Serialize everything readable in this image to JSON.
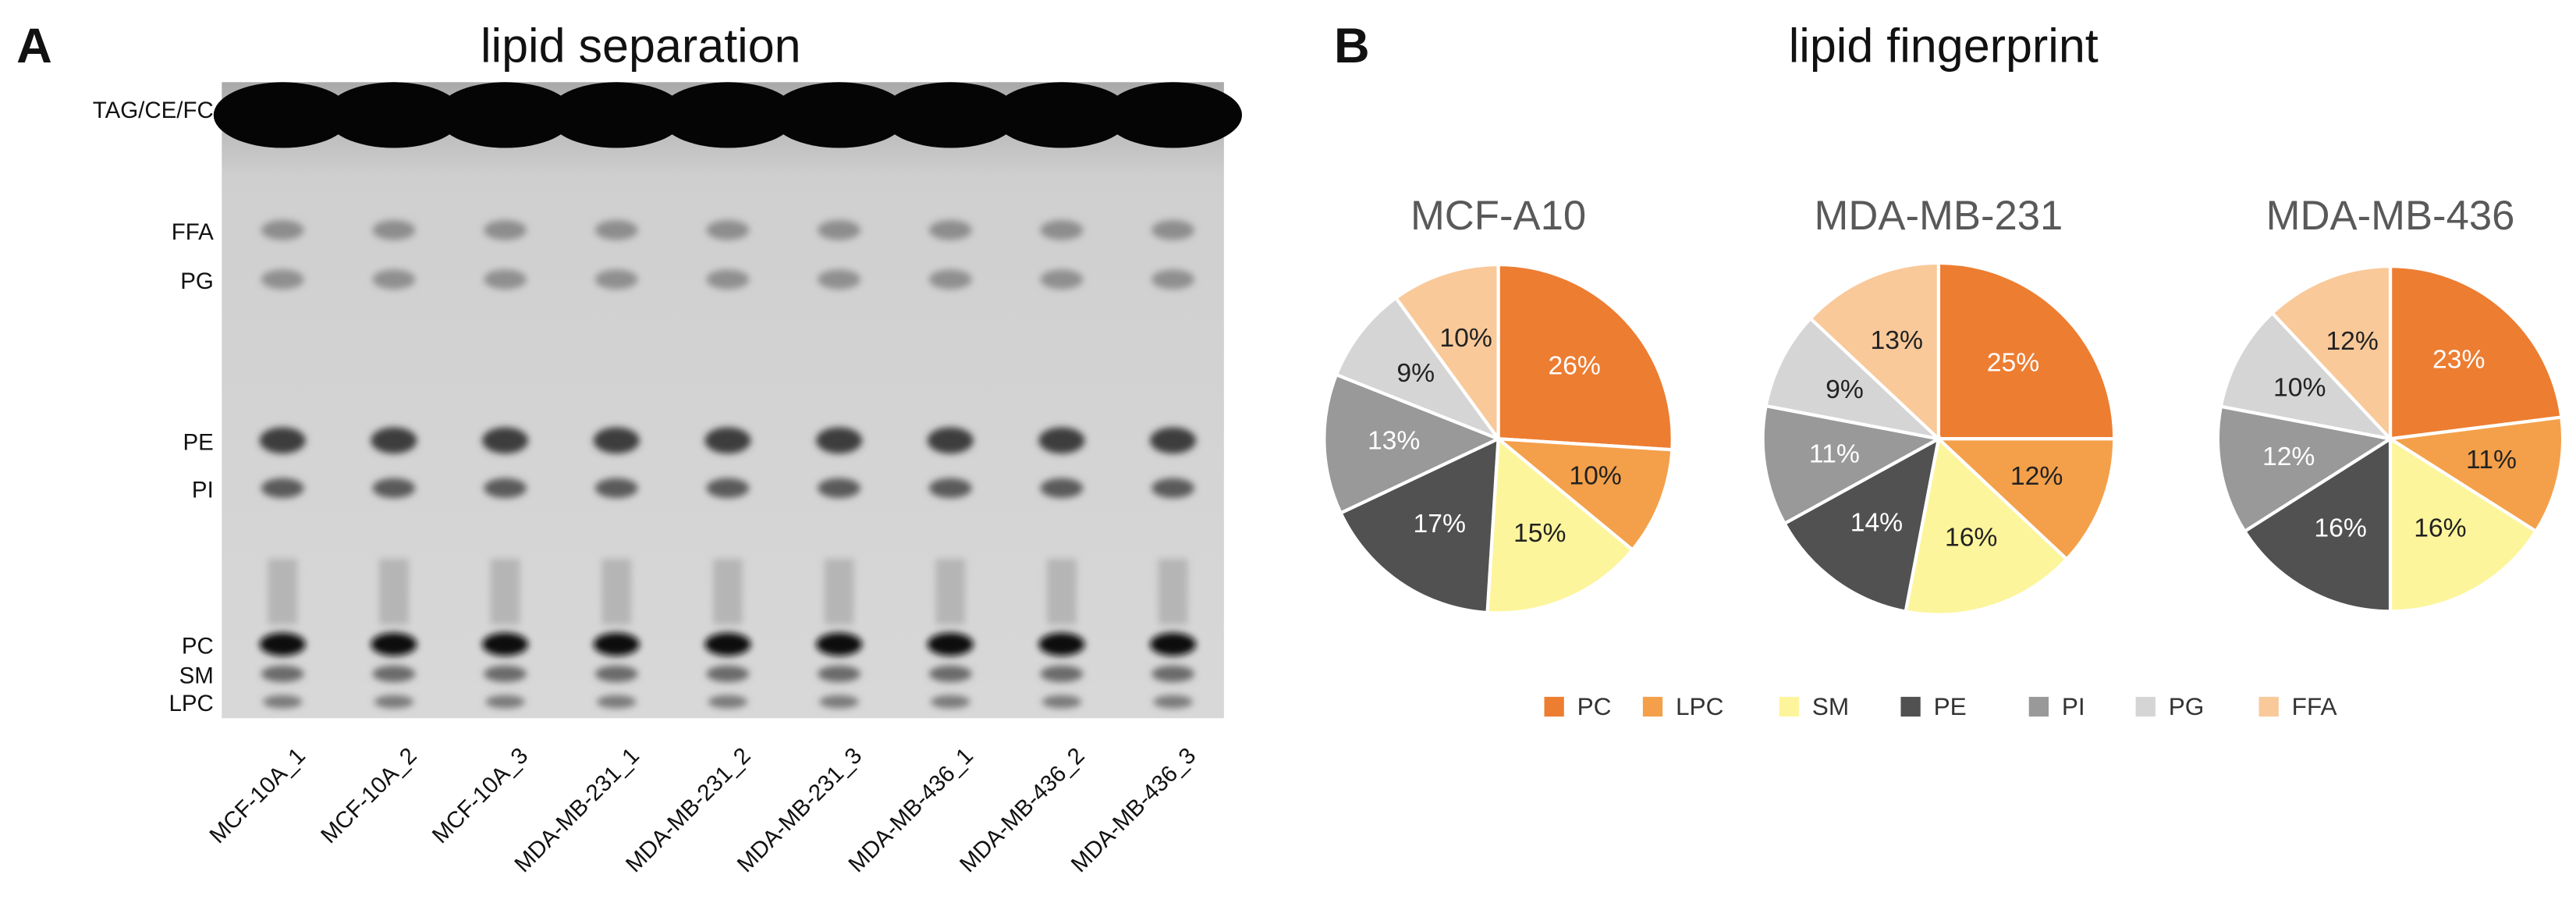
{
  "gel": {
    "letter": "A",
    "title": "lipid separation",
    "band_labels": [
      "TAG/CE/FC",
      "FFA",
      "PG",
      "PE",
      "PI",
      "PC",
      "SM",
      "LPC"
    ],
    "lane_labels": [
      "MCF-10A_1",
      "MCF-10A_2",
      "MCF-10A_3",
      "MDA-MB-231_1",
      "MDA-MB-231_2",
      "MDA-MB-231_3",
      "MDA-MB-436_1",
      "MDA-MB-436_2",
      "MDA-MB-436_3"
    ]
  },
  "panel_b": {
    "letter": "B",
    "title": "lipid fingerprint"
  },
  "chart_data": [
    {
      "type": "pie",
      "title": "MCF-A10",
      "categories": [
        "PC",
        "LPC",
        "SM",
        "PE",
        "PI",
        "PG",
        "FFA"
      ],
      "values": [
        26,
        10,
        15,
        17,
        13,
        9,
        10
      ],
      "value_labels": [
        "26%",
        "10%",
        "15%",
        "17%",
        "13%",
        "9%",
        "10%"
      ],
      "colors": [
        "#ed7d31",
        "#f4a04a",
        "#fdf59c",
        "#515151",
        "#999999",
        "#d5d5d5",
        "#f9c99a"
      ]
    },
    {
      "type": "pie",
      "title": "MDA-MB-231",
      "categories": [
        "PC",
        "LPC",
        "SM",
        "PE",
        "PI",
        "PG",
        "FFA"
      ],
      "values": [
        25,
        12,
        16,
        14,
        11,
        9,
        13
      ],
      "value_labels": [
        "25%",
        "12%",
        "16%",
        "14%",
        "11%",
        "9%",
        "13%"
      ],
      "colors": [
        "#ed7d31",
        "#f4a04a",
        "#fdf59c",
        "#515151",
        "#999999",
        "#d5d5d5",
        "#f9c99a"
      ]
    },
    {
      "type": "pie",
      "title": "MDA-MB-436",
      "categories": [
        "PC",
        "LPC",
        "SM",
        "PE",
        "PI",
        "PG",
        "FFA"
      ],
      "values": [
        23,
        11,
        16,
        16,
        12,
        10,
        12
      ],
      "value_labels": [
        "23%",
        "11%",
        "16%",
        "16%",
        "12%",
        "10%",
        "12%"
      ],
      "colors": [
        "#ed7d31",
        "#f4a04a",
        "#fdf59c",
        "#515151",
        "#999999",
        "#d5d5d5",
        "#f9c99a"
      ]
    }
  ]
}
